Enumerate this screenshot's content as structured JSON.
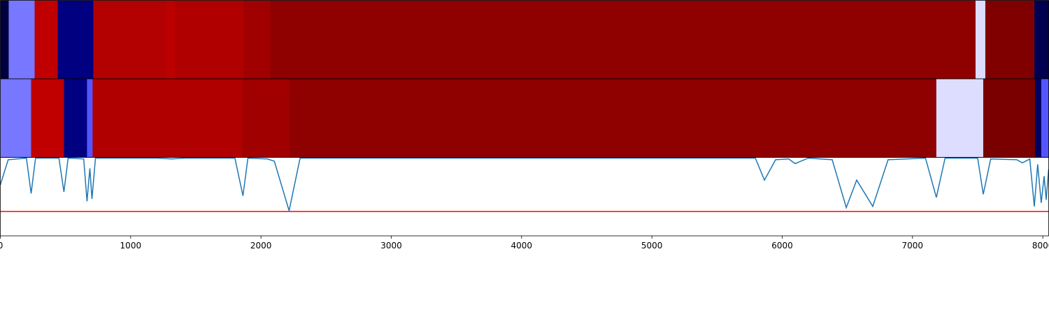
{
  "chart_data": [
    {
      "type": "heatmap",
      "xlim": [
        0,
        8045
      ],
      "bins": [
        0,
        64,
        263,
        440,
        713,
        1271,
        1341,
        1867,
        2071,
        7484,
        7559,
        7935,
        8045
      ],
      "colors": [
        "#00003f",
        "#7777ff",
        "#c00000",
        "#000080",
        "#b30000",
        "#bb0000",
        "#b00000",
        "#a00000",
        "#8f0000",
        "#ddddff",
        "#800000",
        "#000050"
      ]
    },
    {
      "type": "heatmap",
      "xlim": [
        0,
        8045
      ],
      "bins": [
        0,
        236,
        488,
        665,
        708,
        1856,
        2216,
        7183,
        7543,
        7940,
        7988,
        8045
      ],
      "colors": [
        "#7777ff",
        "#c00000",
        "#000080",
        "#5555ff",
        "#b00000",
        "#a00000",
        "#8f0000",
        "#ddddff",
        "#7a0000",
        "#000060",
        "#5555ff"
      ]
    },
    {
      "type": "line",
      "xlim": [
        0,
        8045
      ],
      "ylim": [
        0,
        1
      ],
      "xticks": [
        0,
        1000,
        2000,
        3000,
        4000,
        5000,
        6000,
        7000,
        8000
      ],
      "x": [
        0,
        60,
        200,
        236,
        270,
        450,
        488,
        520,
        640,
        665,
        687,
        703,
        730,
        1200,
        1314,
        1420,
        1800,
        1862,
        1900,
        2050,
        2103,
        2216,
        2300,
        5794,
        5864,
        5950,
        6050,
        6100,
        6200,
        6384,
        6492,
        6572,
        6695,
        6813,
        7100,
        7183,
        7250,
        7500,
        7543,
        7600,
        7800,
        7843,
        7900,
        7935,
        7961,
        7988,
        8010,
        8026,
        8045
      ],
      "series": [
        {
          "color": "#1f77b4",
          "values": [
            0.65,
            0.97,
            0.99,
            0.54,
            0.99,
            0.99,
            0.56,
            0.99,
            0.98,
            0.44,
            0.86,
            0.47,
            0.99,
            0.99,
            0.98,
            0.99,
            0.99,
            0.51,
            0.99,
            0.98,
            0.95,
            0.32,
            0.99,
            0.99,
            0.71,
            0.97,
            0.98,
            0.92,
            0.99,
            0.97,
            0.36,
            0.71,
            0.375,
            0.97,
            0.99,
            0.49,
            0.99,
            0.99,
            0.53,
            0.98,
            0.97,
            0.93,
            0.98,
            0.375,
            0.91,
            0.42,
            0.76,
            0.46,
            0.85
          ]
        }
      ],
      "hline": {
        "value": 0.31,
        "color": "#ff0000"
      }
    }
  ]
}
